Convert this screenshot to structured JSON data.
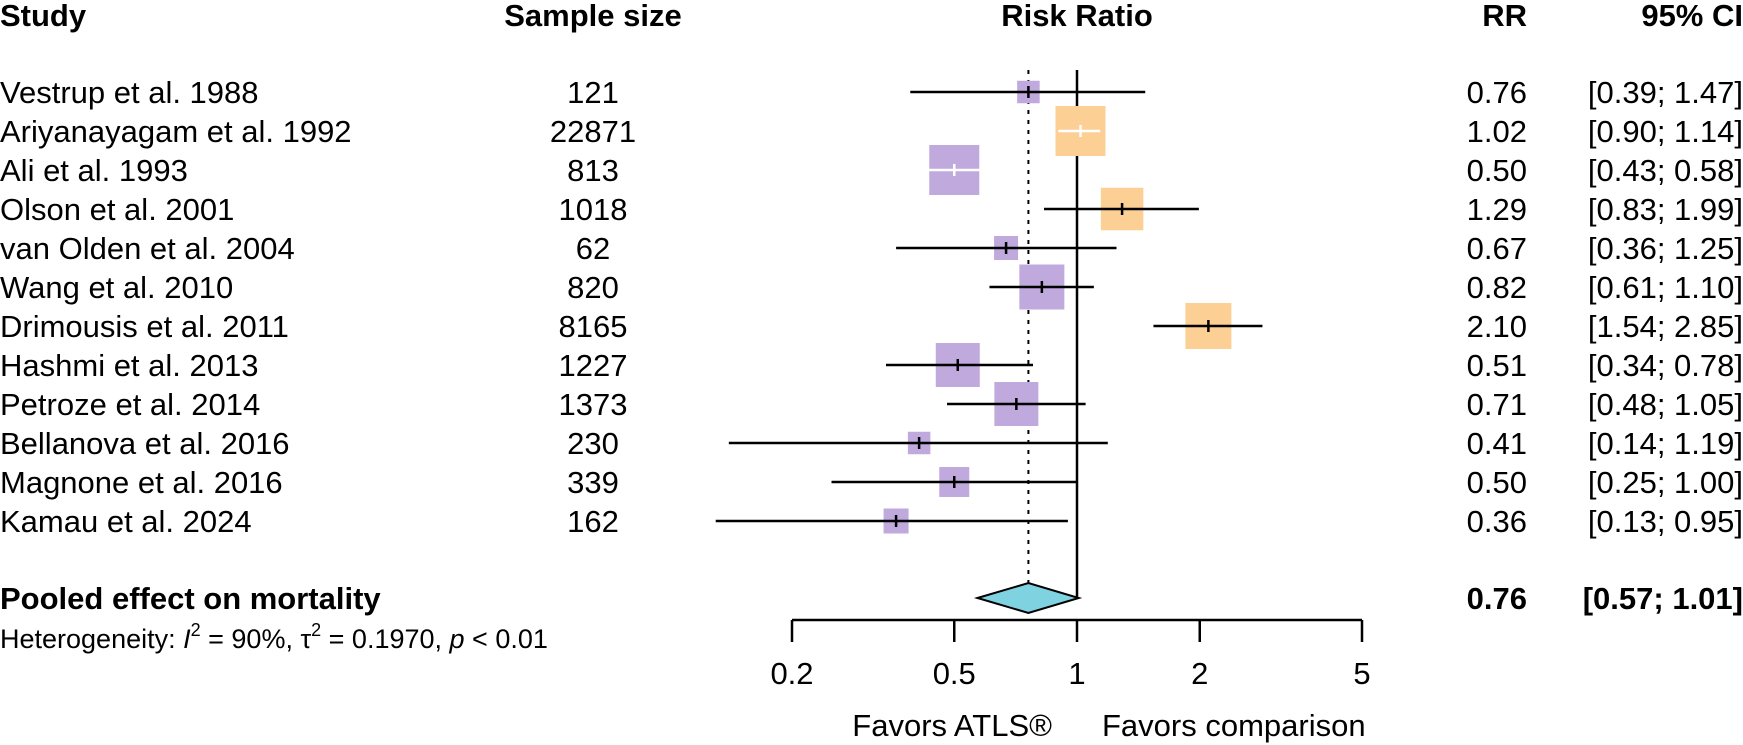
{
  "chart_data": {
    "type": "forest",
    "columns": {
      "study": "Study",
      "sample_size": "Sample size",
      "plot": "Risk Ratio",
      "rr": "RR",
      "ci": "95% CI"
    },
    "studies": [
      {
        "name": "Vestrup et al. 1988",
        "n": "121",
        "rr": 0.76,
        "lo": 0.39,
        "hi": 1.47,
        "rr_text": "0.76",
        "ci_text": "[0.39; 1.47]",
        "favors": "ATLS",
        "weight": 0.45
      },
      {
        "name": "Ariyanayagam et al. 1992",
        "n": "22871",
        "rr": 1.02,
        "lo": 0.9,
        "hi": 1.14,
        "rr_text": "1.02",
        "ci_text": "[0.90; 1.14]",
        "favors": "comparison",
        "weight": 1.0
      },
      {
        "name": "Ali et al. 1993",
        "n": "813",
        "rr": 0.5,
        "lo": 0.43,
        "hi": 0.58,
        "rr_text": "0.50",
        "ci_text": "[0.43; 0.58]",
        "favors": "ATLS",
        "weight": 1.0
      },
      {
        "name": "Olson et al. 2001",
        "n": "1018",
        "rr": 1.29,
        "lo": 0.83,
        "hi": 1.99,
        "rr_text": "1.29",
        "ci_text": "[0.83; 1.99]",
        "favors": "comparison",
        "weight": 0.85
      },
      {
        "name": "van Olden et al. 2004",
        "n": "62",
        "rr": 0.67,
        "lo": 0.36,
        "hi": 1.25,
        "rr_text": "0.67",
        "ci_text": "[0.36; 1.25]",
        "favors": "ATLS",
        "weight": 0.48
      },
      {
        "name": "Wang et al. 2010",
        "n": "820",
        "rr": 0.82,
        "lo": 0.61,
        "hi": 1.1,
        "rr_text": "0.82",
        "ci_text": "[0.61; 1.10]",
        "favors": "ATLS",
        "weight": 0.9
      },
      {
        "name": "Drimousis et al. 2011",
        "n": "8165",
        "rr": 2.1,
        "lo": 1.54,
        "hi": 2.85,
        "rr_text": "2.10",
        "ci_text": "[1.54; 2.85]",
        "favors": "comparison",
        "weight": 0.92
      },
      {
        "name": "Hashmi et al. 2013",
        "n": "1227",
        "rr": 0.51,
        "lo": 0.34,
        "hi": 0.78,
        "rr_text": "0.51",
        "ci_text": "[0.34; 0.78]",
        "favors": "ATLS",
        "weight": 0.88
      },
      {
        "name": "Petroze et al. 2014",
        "n": "1373",
        "rr": 0.71,
        "lo": 0.48,
        "hi": 1.05,
        "rr_text": "0.71",
        "ci_text": "[0.48; 1.05]",
        "favors": "ATLS",
        "weight": 0.88
      },
      {
        "name": "Bellanova et al. 2016",
        "n": "230",
        "rr": 0.41,
        "lo": 0.14,
        "hi": 1.19,
        "rr_text": "0.41",
        "ci_text": "[0.14; 1.19]",
        "favors": "ATLS",
        "weight": 0.45
      },
      {
        "name": "Magnone et al. 2016",
        "n": "339",
        "rr": 0.5,
        "lo": 0.25,
        "hi": 1.0,
        "rr_text": "0.50",
        "ci_text": "[0.25; 1.00]",
        "favors": "ATLS",
        "weight": 0.6
      },
      {
        "name": "Kamau et al. 2024",
        "n": "162",
        "rr": 0.36,
        "lo": 0.13,
        "hi": 0.95,
        "rr_text": "0.36",
        "ci_text": "[0.13; 0.95]",
        "favors": "ATLS",
        "weight": 0.5
      }
    ],
    "pooled": {
      "label": "Pooled effect on mortality",
      "rr": 0.76,
      "lo": 0.57,
      "hi": 1.01,
      "rr_text": "0.76",
      "ci_text": "[0.57; 1.01]"
    },
    "heterogeneity": {
      "label": "Heterogeneity: ",
      "i2_sym": "I",
      "i2_sup": "2",
      "i2_val": " = 90%, ",
      "tau_sym": "τ",
      "tau_sup": "2",
      "tau_val": " = 0.1970, ",
      "p_sym": "p",
      "p_val": " < 0.01"
    },
    "x_axis": {
      "scale": "log",
      "ticks": [
        0.2,
        0.5,
        1,
        2,
        5
      ],
      "tick_labels": [
        "0.2",
        "0.5",
        "1",
        "2",
        "5"
      ],
      "xlim": [
        0.2,
        5
      ]
    },
    "favors_left": "Favors ATLS®",
    "favors_right": "Favors comparison",
    "colors": {
      "favors_ATLS": "#bfa9dd",
      "favors_comparison": "#fccf94",
      "pooled_diamond": "#7fd3e0",
      "line": "#000000"
    }
  }
}
